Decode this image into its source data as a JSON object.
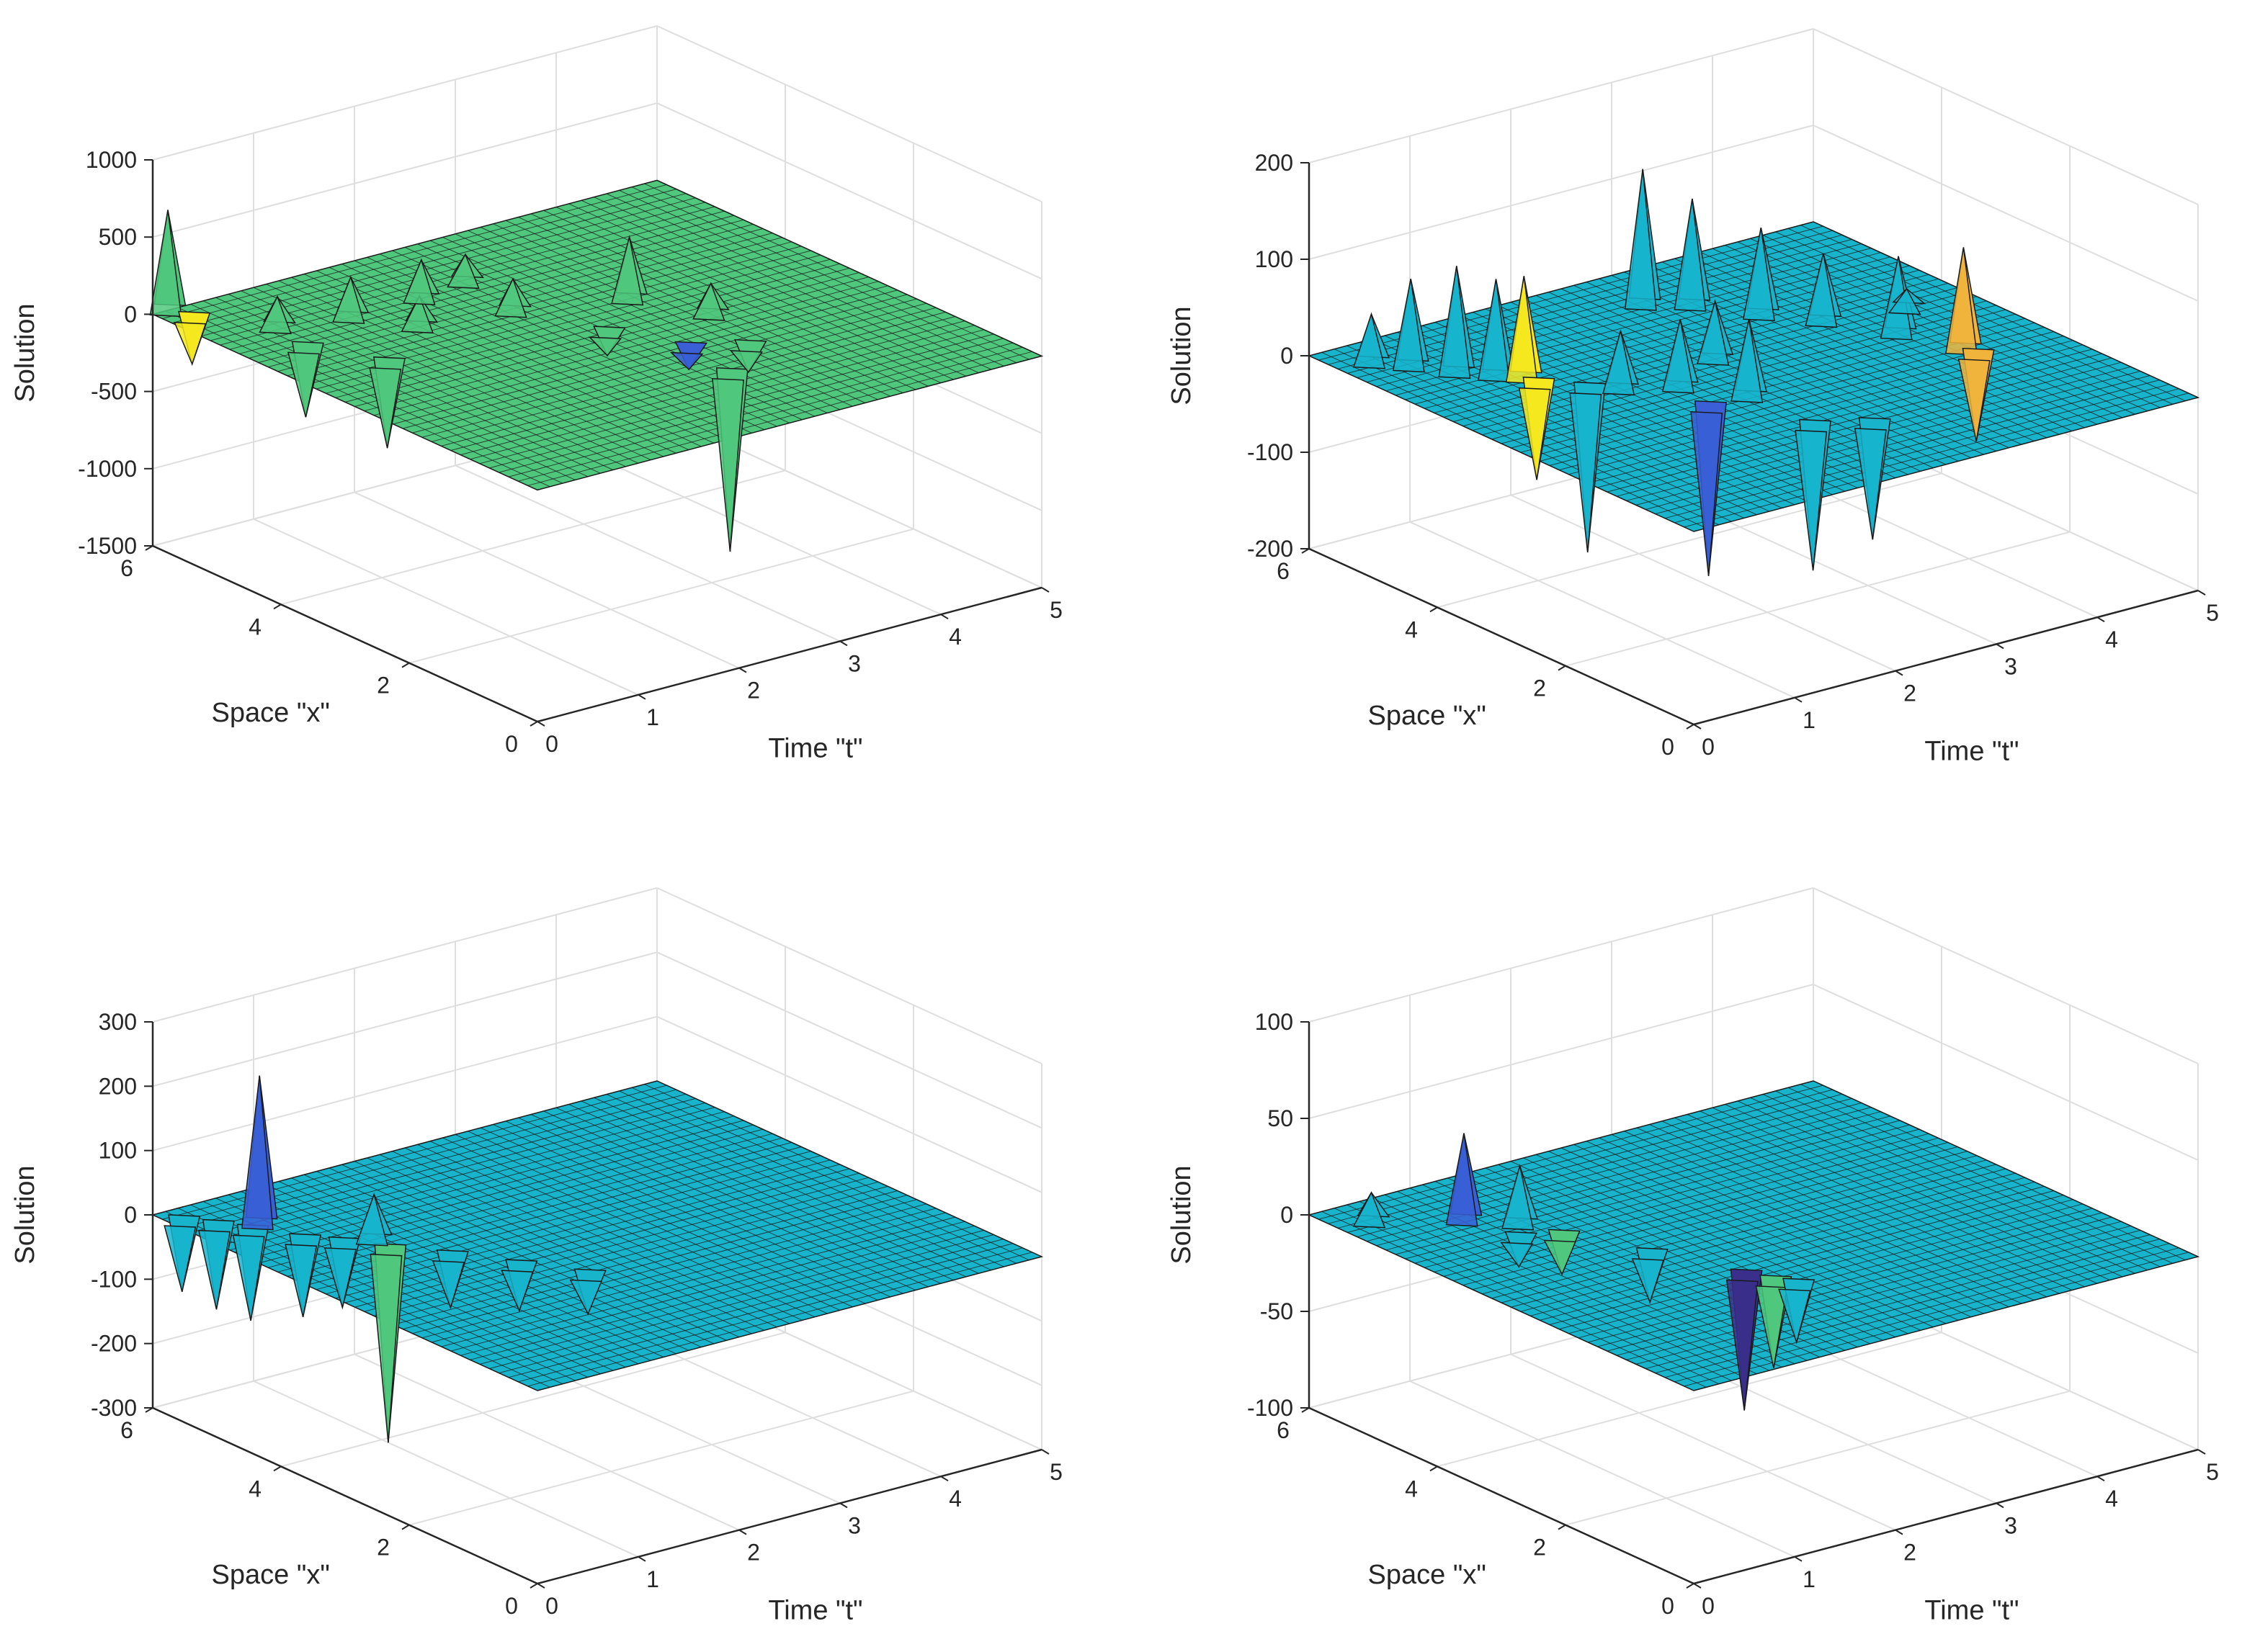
{
  "figure": {
    "background": "#ffffff",
    "grid": true
  },
  "colors": {
    "grid": "#dedede",
    "axis": "#262626",
    "edge": "#1a1a1a",
    "surface_green": "#4fc87d",
    "surface_teal": "#18b4cc",
    "peak_blue": "#3a5fd6",
    "peak_yellow": "#f5e81e",
    "peak_orange": "#f0b43c",
    "peak_dark": "#3a2f8a"
  },
  "chart_data": [
    {
      "type": "surface",
      "title": "",
      "xlabel": "Time \"t\"",
      "ylabel": "Space \"x\"",
      "zlabel": "Solution",
      "xlim": [
        0,
        5
      ],
      "ylim": [
        0,
        6
      ],
      "zlim": [
        -1500,
        1000
      ],
      "xticks": [
        "0",
        "1",
        "2",
        "3",
        "4",
        "5"
      ],
      "yticks": [
        "0",
        "2",
        "4",
        "6"
      ],
      "zticks": [
        "-1500",
        "-1000",
        "-500",
        "0",
        "500",
        "1000"
      ],
      "base_value": 0,
      "colormap": [
        "#4fc87d",
        "#3fbc8a",
        "#38b38f"
      ],
      "spikes": [
        {
          "t": 0.15,
          "x": 6.0,
          "z": 650,
          "color": "#4fc87d"
        },
        {
          "t": 0.2,
          "x": 5.7,
          "z": -300,
          "color": "#f5e81e"
        },
        {
          "t": 0.6,
          "x": 5.0,
          "z": 200,
          "color": "#4fc87d"
        },
        {
          "t": 0.5,
          "x": 4.4,
          "z": -450,
          "color": "#4fc87d"
        },
        {
          "t": 0.8,
          "x": 3.6,
          "z": -550,
          "color": "#4fc87d"
        },
        {
          "t": 1.2,
          "x": 4.8,
          "z": 260,
          "color": "#4fc87d"
        },
        {
          "t": 1.5,
          "x": 4.2,
          "z": 200,
          "color": "#4fc87d"
        },
        {
          "t": 1.9,
          "x": 4.8,
          "z": 250,
          "color": "#4fc87d"
        },
        {
          "t": 2.4,
          "x": 4.9,
          "z": 180,
          "color": "#4fc87d"
        },
        {
          "t": 2.3,
          "x": 4.0,
          "z": 210,
          "color": "#4fc87d"
        },
        {
          "t": 3.2,
          "x": 3.6,
          "z": 400,
          "color": "#4fc87d"
        },
        {
          "t": 3.5,
          "x": 2.8,
          "z": 200,
          "color": "#4fc87d"
        },
        {
          "t": 2.6,
          "x": 3.0,
          "z": -150,
          "color": "#4fc87d"
        },
        {
          "t": 2.8,
          "x": 1.4,
          "z": -1150,
          "color": "#4fc87d"
        },
        {
          "t": 2.9,
          "x": 2.2,
          "z": -140,
          "color": "#3a5fd6"
        },
        {
          "t": 3.3,
          "x": 1.9,
          "z": -170,
          "color": "#4fc87d"
        }
      ]
    },
    {
      "type": "surface",
      "title": "",
      "xlabel": "Time \"t\"",
      "ylabel": "Space \"x\"",
      "zlabel": "Solution",
      "xlim": [
        0,
        5
      ],
      "ylim": [
        0,
        6
      ],
      "zlim": [
        -200,
        200
      ],
      "xticks": [
        "0",
        "1",
        "2",
        "3",
        "4",
        "5"
      ],
      "yticks": [
        "0",
        "2",
        "4",
        "6"
      ],
      "zticks": [
        "-200",
        "-100",
        "0",
        "100",
        "200"
      ],
      "base_value": 0,
      "colormap": [
        "#18b4cc",
        "#1fa9d4",
        "#22bcbc"
      ],
      "spikes": [
        {
          "t": 0.3,
          "x": 5.5,
          "z": 50,
          "color": "#18b4cc"
        },
        {
          "t": 0.5,
          "x": 5.2,
          "z": 90,
          "color": "#18b4cc"
        },
        {
          "t": 0.7,
          "x": 4.8,
          "z": 110,
          "color": "#18b4cc"
        },
        {
          "t": 0.9,
          "x": 4.5,
          "z": 100,
          "color": "#18b4cc"
        },
        {
          "t": 1.05,
          "x": 4.3,
          "z": 105,
          "color": "#f5e81e"
        },
        {
          "t": 1.05,
          "x": 4.1,
          "z": -100,
          "color": "#f5e81e"
        },
        {
          "t": 1.3,
          "x": 3.7,
          "z": -170,
          "color": "#18b4cc"
        },
        {
          "t": 1.8,
          "x": 2.6,
          "z": -175,
          "color": "#3a5fd6"
        },
        {
          "t": 1.5,
          "x": 3.5,
          "z": 60,
          "color": "#18b4cc"
        },
        {
          "t": 1.9,
          "x": 3.2,
          "z": 70,
          "color": "#18b4cc"
        },
        {
          "t": 2.2,
          "x": 2.6,
          "z": 80,
          "color": "#18b4cc"
        },
        {
          "t": 2.5,
          "x": 3.6,
          "z": 60,
          "color": "#18b4cc"
        },
        {
          "t": 2.2,
          "x": 1.6,
          "z": -150,
          "color": "#18b4cc"
        },
        {
          "t": 2.6,
          "x": 1.3,
          "z": -120,
          "color": "#18b4cc"
        },
        {
          "t": 2.8,
          "x": 5.2,
          "z": 140,
          "color": "#18b4cc"
        },
        {
          "t": 3.1,
          "x": 4.9,
          "z": 110,
          "color": "#18b4cc"
        },
        {
          "t": 3.4,
          "x": 4.3,
          "z": 90,
          "color": "#18b4cc"
        },
        {
          "t": 3.7,
          "x": 3.8,
          "z": 70,
          "color": "#18b4cc"
        },
        {
          "t": 4.0,
          "x": 3.1,
          "z": 80,
          "color": "#18b4cc"
        },
        {
          "t": 4.2,
          "x": 2.4,
          "z": 105,
          "color": "#f0b43c"
        },
        {
          "t": 4.2,
          "x": 2.2,
          "z": -90,
          "color": "#f0b43c"
        },
        {
          "t": 4.4,
          "x": 3.6,
          "z": 20,
          "color": "#18b4cc"
        }
      ]
    },
    {
      "type": "surface",
      "title": "",
      "xlabel": "Time \"t\"",
      "ylabel": "Space \"x\"",
      "zlabel": "Solution",
      "xlim": [
        0,
        5
      ],
      "ylim": [
        0,
        6
      ],
      "zlim": [
        -300,
        300
      ],
      "xticks": [
        "0",
        "1",
        "2",
        "3",
        "4",
        "5"
      ],
      "yticks": [
        "0",
        "2",
        "4",
        "6"
      ],
      "zticks": [
        "-300",
        "-200",
        "-100",
        "0",
        "100",
        "200",
        "300"
      ],
      "base_value": 0,
      "colormap": [
        "#18b4cc",
        "#1fa9d4",
        "#22bcbc"
      ],
      "spikes": [
        {
          "t": 0.1,
          "x": 5.7,
          "z": -110,
          "color": "#18b4cc"
        },
        {
          "t": 0.25,
          "x": 5.4,
          "z": -130,
          "color": "#18b4cc"
        },
        {
          "t": 0.4,
          "x": 5.1,
          "z": -140,
          "color": "#18b4cc"
        },
        {
          "t": 0.55,
          "x": 5.2,
          "z": 230,
          "color": "#3a5fd6"
        },
        {
          "t": 0.6,
          "x": 4.6,
          "z": -120,
          "color": "#18b4cc"
        },
        {
          "t": 0.8,
          "x": 4.3,
          "z": -100,
          "color": "#18b4cc"
        },
        {
          "t": 1.0,
          "x": 3.9,
          "z": -300,
          "color": "#4fc87d"
        },
        {
          "t": 1.05,
          "x": 4.2,
          "z": 70,
          "color": "#18b4cc"
        },
        {
          "t": 1.3,
          "x": 3.4,
          "z": -80,
          "color": "#18b4cc"
        },
        {
          "t": 1.6,
          "x": 2.8,
          "z": -70,
          "color": "#18b4cc"
        },
        {
          "t": 1.9,
          "x": 2.2,
          "z": -60,
          "color": "#18b4cc"
        }
      ]
    },
    {
      "type": "surface",
      "title": "",
      "xlabel": "Time \"t\"",
      "ylabel": "Space \"x\"",
      "zlabel": "Solution",
      "xlim": [
        0,
        5
      ],
      "ylim": [
        0,
        6
      ],
      "zlim": [
        -100,
        100
      ],
      "xticks": [
        "0",
        "1",
        "2",
        "3",
        "4",
        "5"
      ],
      "yticks": [
        "0",
        "2",
        "4",
        "6"
      ],
      "zticks": [
        "-100",
        "-50",
        "0",
        "50",
        "100"
      ],
      "base_value": 0,
      "colormap": [
        "#18b4cc",
        "#1fa9d4",
        "#22bcbc"
      ],
      "spikes": [
        {
          "t": 0.3,
          "x": 5.5,
          "z": 15,
          "color": "#18b4cc"
        },
        {
          "t": 0.9,
          "x": 5.0,
          "z": 45,
          "color": "#3a5fd6"
        },
        {
          "t": 1.2,
          "x": 4.6,
          "z": 30,
          "color": "#18b4cc"
        },
        {
          "t": 1.3,
          "x": 4.1,
          "z": -20,
          "color": "#4fc87d"
        },
        {
          "t": 1.0,
          "x": 4.3,
          "z": -15,
          "color": "#18b4cc"
        },
        {
          "t": 1.6,
          "x": 3.2,
          "z": -25,
          "color": "#18b4cc"
        },
        {
          "t": 1.9,
          "x": 2.2,
          "z": -70,
          "color": "#3a2f8a"
        },
        {
          "t": 2.0,
          "x": 1.9,
          "z": -45,
          "color": "#4fc87d"
        },
        {
          "t": 2.1,
          "x": 1.7,
          "z": -30,
          "color": "#18b4cc"
        }
      ]
    }
  ]
}
